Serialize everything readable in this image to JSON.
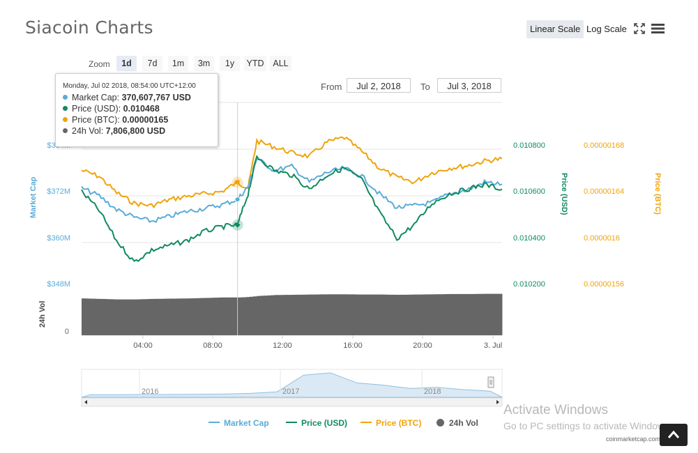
{
  "title": "Siacoin Charts",
  "toolbar": {
    "linear_scale": "Linear Scale",
    "log_scale": "Log Scale",
    "fullscreen_icon": "fullscreen-icon",
    "menu_icon": "hamburger-menu-icon"
  },
  "zoom": {
    "label": "Zoom",
    "options": [
      "1d",
      "7d",
      "1m",
      "3m",
      "1y",
      "YTD",
      "ALL"
    ],
    "selected": "1d"
  },
  "range": {
    "from_label": "From",
    "from_value": "Jul 2, 2018",
    "to_label": "To",
    "to_value": "Jul 3, 2018"
  },
  "tooltip": {
    "date": "Monday, Jul 02 2018, 08:54:00 UTC+12:00",
    "rows": [
      {
        "label": "Market Cap:",
        "value": "370,607,767 USD",
        "color": "#59acd8"
      },
      {
        "label": "Price (USD):",
        "value": "0.010468",
        "color": "#0f8a5f"
      },
      {
        "label": "Price (BTC):",
        "value": "0.00000165",
        "color": "#f0a30a"
      },
      {
        "label": "24h Vol:",
        "value": "7,806,800 USD",
        "color": "#666666"
      }
    ]
  },
  "legend": [
    {
      "name": "Market Cap",
      "color": "#59acd8"
    },
    {
      "name": "Price (USD)",
      "color": "#0f8a5f"
    },
    {
      "name": "Price (BTC)",
      "color": "#f0a30a"
    },
    {
      "name": "24h Vol",
      "color": "#666666"
    }
  ],
  "credit": "coinmarketcap.com",
  "watermark": {
    "line1": "Activate Windows",
    "line2": "Go to PC settings to activate Windows."
  },
  "chart_data": {
    "type": "line",
    "x_tick_labels": [
      "04:00",
      "08:00",
      "12:00",
      "16:00",
      "20:00",
      "3. Jul"
    ],
    "axes": {
      "market_cap": {
        "title": "Market Cap",
        "ticks": [
          "$348M",
          "$360M",
          "$372M",
          "$384M"
        ],
        "values": [
          348,
          360,
          372,
          384
        ],
        "range": [
          348,
          384
        ],
        "unit": "M USD",
        "color": "#59acd8"
      },
      "price_usd": {
        "title": "Price (USD)",
        "ticks": [
          "0.010200",
          "0.010400",
          "0.010600",
          "0.010800"
        ],
        "values": [
          0.0102,
          0.0104,
          0.0106,
          0.0108
        ],
        "range": [
          0.0102,
          0.0108
        ],
        "color": "#0f8a5f"
      },
      "price_btc": {
        "title": "Price (BTC)",
        "ticks": [
          "0.00000156",
          "0.0000016",
          "0.00000164",
          "0.00000168"
        ],
        "values": [
          1.56e-06,
          1.6e-06,
          1.64e-06,
          1.68e-06
        ],
        "range": [
          1.56e-06,
          1.68e-06
        ],
        "color": "#f0a30a"
      },
      "volume": {
        "title": "24h Vol",
        "ticks": [
          "0"
        ]
      }
    },
    "x_hours": [
      0,
      1,
      2,
      3,
      4,
      5,
      6,
      7,
      8,
      8.9,
      9.5,
      10,
      11,
      12,
      13,
      14,
      15,
      16,
      17,
      18,
      19,
      20,
      21,
      22,
      23,
      24
    ],
    "series": [
      {
        "name": "Market Cap",
        "axis": "market_cap",
        "values": [
          373.5,
          371.5,
          368.0,
          366.0,
          365.0,
          366.2,
          367.5,
          368.3,
          369.2,
          370.6,
          373.8,
          381.0,
          378.0,
          379.0,
          375.0,
          377.5,
          378.5,
          376.5,
          372.0,
          368.5,
          369.0,
          369.8,
          372.0,
          373.0,
          375.0,
          374.5
        ]
      },
      {
        "name": "Price (USD)",
        "axis": "price_usd",
        "values": [
          0.01061,
          0.01053,
          0.0104,
          0.01031,
          0.01036,
          0.01038,
          0.0104,
          0.01044,
          0.01046,
          0.010468,
          0.0106,
          0.01076,
          0.0107,
          0.01068,
          0.01062,
          0.01068,
          0.01071,
          0.01066,
          0.01052,
          0.01041,
          0.01047,
          0.01056,
          0.0106,
          0.01062,
          0.01064,
          0.01062
        ]
      },
      {
        "name": "Price (BTC)",
        "axis": "price_btc",
        "values": [
          1.66e-06,
          1.655e-06,
          1.641e-06,
          1.632e-06,
          1.63e-06,
          1.635e-06,
          1.638e-06,
          1.64e-06,
          1.642e-06,
          1.65e-06,
          1.645e-06,
          1.685e-06,
          1.68e-06,
          1.675e-06,
          1.672e-06,
          1.684e-06,
          1.688e-06,
          1.676e-06,
          1.662e-06,
          1.654e-06,
          1.65e-06,
          1.658e-06,
          1.662e-06,
          1.664e-06,
          1.668e-06,
          1.67e-06
        ]
      },
      {
        "name": "24h Vol",
        "axis": "volume",
        "values": [
          7.6,
          7.5,
          7.4,
          7.4,
          7.5,
          7.55,
          7.6,
          7.7,
          7.8,
          7.8,
          7.9,
          8.1,
          8.3,
          8.35,
          8.4,
          8.45,
          8.45,
          8.4,
          8.4,
          8.35,
          8.4,
          8.45,
          8.5,
          8.5,
          8.55,
          8.55
        ]
      }
    ],
    "navigator": {
      "labels": [
        "2016",
        "2017",
        "2018"
      ],
      "values": [
        0.02,
        0.02,
        0.03,
        0.03,
        0.04,
        0.05,
        0.08,
        0.15,
        0.9,
        1.0,
        0.55,
        0.45,
        0.3,
        0.35,
        0.25,
        0.18
      ]
    },
    "grid": true
  }
}
